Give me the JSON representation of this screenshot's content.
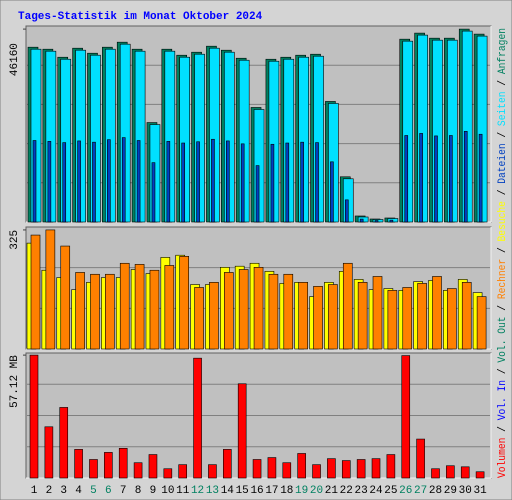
{
  "title": "Tages-Statistik im Monat Oktober 2024",
  "legend_separator": " / ",
  "chart_data": [
    {
      "type": "bar",
      "ylim": [
        0,
        46900
      ],
      "yticks": [
        46160
      ],
      "series": [
        {
          "name": "Anfragen",
          "color": "#008060",
          "values": [
            41830,
            41350,
            39430,
            41590,
            40390,
            41830,
            43030,
            41350,
            23800,
            41350,
            39910,
            40630,
            42070,
            41110,
            39190,
            27410,
            38950,
            39430,
            39910,
            40150,
            28850,
            10820,
            1440,
            720,
            960,
            43750,
            45200,
            43990,
            43990,
            46160,
            44960
          ]
        },
        {
          "name": "Seiten",
          "color": "#00e0ff",
          "values": [
            41350,
            40870,
            38950,
            41110,
            39910,
            41350,
            42550,
            40870,
            23320,
            40870,
            39430,
            40150,
            41590,
            40630,
            38710,
            26930,
            38470,
            38950,
            39430,
            39670,
            28370,
            10340,
            1200,
            600,
            840,
            43270,
            44720,
            43510,
            43510,
            45680,
            44480
          ]
        },
        {
          "name": "Dateien",
          "color": "#0040c0",
          "values": [
            19500,
            19300,
            19000,
            19400,
            19100,
            19700,
            20200,
            19500,
            14200,
            19300,
            18900,
            19200,
            19800,
            19400,
            18700,
            13500,
            18600,
            18900,
            19100,
            19000,
            14400,
            5300,
            700,
            350,
            450,
            20700,
            21200,
            20600,
            20700,
            21700,
            21000
          ]
        }
      ]
    },
    {
      "type": "bar",
      "ylim": [
        0,
        333
      ],
      "yticks": [
        325
      ],
      "series": [
        {
          "name": "Besuche",
          "color": "#ffff00",
          "values": [
            289,
            215,
            195,
            162,
            182,
            195,
            195,
            217,
            206,
            250,
            256,
            176,
            176,
            223,
            226,
            234,
            212,
            179,
            182,
            143,
            182,
            212,
            190,
            162,
            165,
            160,
            184,
            187,
            160,
            190,
            154
          ]
        },
        {
          "name": "Rechner",
          "color": "#ff8000",
          "values": [
            311,
            325,
            281,
            209,
            204,
            204,
            234,
            231,
            215,
            228,
            253,
            168,
            182,
            209,
            217,
            223,
            204,
            204,
            182,
            171,
            176,
            234,
            182,
            198,
            160,
            168,
            179,
            198,
            165,
            182,
            143
          ]
        }
      ]
    },
    {
      "type": "bar",
      "ylim": [
        0,
        58.1
      ],
      "yticks": [
        {
          "value": 57.12,
          "label": "57.12 MB"
        }
      ],
      "categories": [
        "1",
        "2",
        "3",
        "4",
        "5",
        "6",
        "7",
        "8",
        "9",
        "10",
        "11",
        "12",
        "13",
        "14",
        "15",
        "16",
        "17",
        "18",
        "19",
        "20",
        "21",
        "22",
        "23",
        "24",
        "25",
        "26",
        "27",
        "28",
        "29",
        "30",
        "31"
      ],
      "category_colors": [
        "#000000",
        "#000000",
        "#000000",
        "#000000",
        "#008060",
        "#008060",
        "#000000",
        "#000000",
        "#000000",
        "#000000",
        "#000000",
        "#008060",
        "#008060",
        "#000000",
        "#000000",
        "#000000",
        "#000000",
        "#000000",
        "#008060",
        "#008060",
        "#000000",
        "#000000",
        "#000000",
        "#000000",
        "#000000",
        "#008060",
        "#008060",
        "#000000",
        "#000000",
        "#000000",
        "#000000"
      ],
      "series": [
        {
          "name": "Volumen",
          "color": "#ff0000",
          "values": [
            57.12,
            23.8,
            32.8,
            13.3,
            8.6,
            11.9,
            13.8,
            7.1,
            10.9,
            4.3,
            6.2,
            55.7,
            6.2,
            13.3,
            43.8,
            8.6,
            9.5,
            7.1,
            11.4,
            6.2,
            9.0,
            8.1,
            8.6,
            9.0,
            10.9,
            56.9,
            18.1,
            4.3,
            5.7,
            5.2,
            2.9
          ]
        }
      ],
      "legend_entries": [
        {
          "name": "Vol. In",
          "color": "#0000ff"
        },
        {
          "name": "Vol. Out",
          "color": "#008060"
        }
      ]
    }
  ]
}
